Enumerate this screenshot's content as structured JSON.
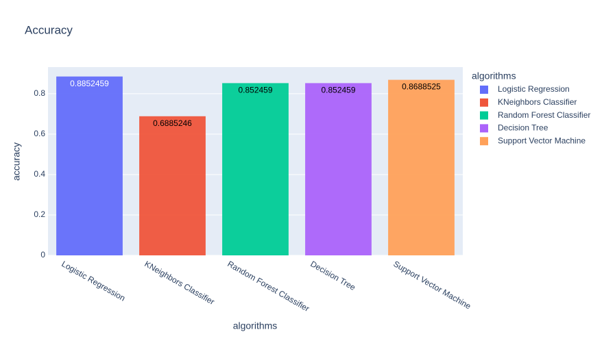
{
  "chart_data": {
    "type": "bar",
    "title": "Accuracy",
    "x_label": "algorithms",
    "y_label": "accuracy",
    "legend_title": "algorithms",
    "categories": [
      "Logistic Regression",
      "KNeighbors Classifier",
      "Random Forest Classifier",
      "Decision Tree",
      "Support Vector Machine"
    ],
    "values": [
      0.8852459,
      0.6885246,
      0.852459,
      0.852459,
      0.8688525
    ],
    "colors": [
      "#636efa",
      "#ef553b",
      "#00cc96",
      "#ab63fa",
      "#ffa15a"
    ],
    "ylim": [
      0,
      0.9318
    ],
    "yticks": [
      0,
      0.2,
      0.4,
      0.6,
      0.8
    ],
    "grid": true,
    "legend": "right"
  }
}
